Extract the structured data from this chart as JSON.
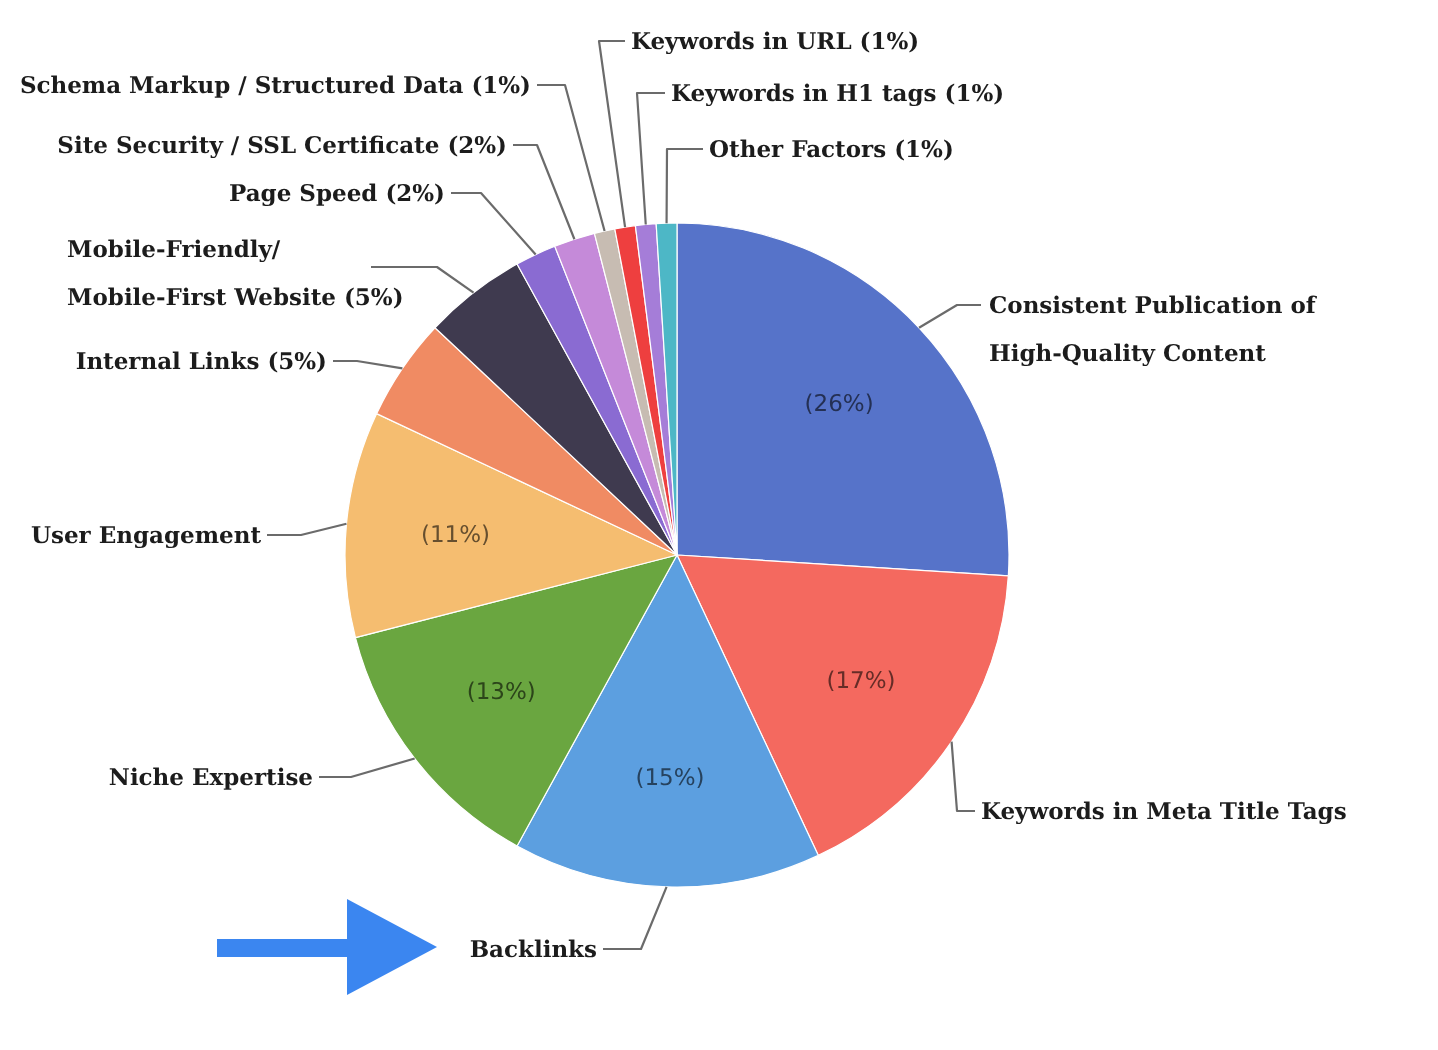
{
  "chart_data": {
    "type": "pie",
    "categories": [
      "Consistent Publication of\nHigh-Quality Content",
      "Keywords in Meta Title Tags",
      "Backlinks",
      "Niche Expertise",
      "User Engagement",
      "Internal Links (5%)",
      "Mobile-Friendly/\nMobile-First Website (5%)",
      "Page Speed (2%)",
      "Site Security / SSL Certificate (2%)",
      "Schema Markup / Structured Data (1%)",
      "Keywords in URL (1%)",
      "Keywords in H1 tags (1%)",
      "Other Factors (1%)"
    ],
    "values": [
      26,
      17,
      15,
      13,
      11,
      5,
      5,
      2,
      2,
      1,
      1,
      1,
      1
    ],
    "colors": [
      "#5673c9",
      "#f4695f",
      "#5c9fe0",
      "#6aa640",
      "#f5bd70",
      "#f08b63",
      "#3f3a4f",
      "#8a6bd2",
      "#c58ad9",
      "#c7bcb2",
      "#ee3f3f",
      "#a57dd8",
      "#4db7c6"
    ],
    "value_labels": [
      "(26%)",
      "(17%)",
      "(15%)",
      "(13%)",
      "(11%)",
      null,
      null,
      null,
      null,
      null,
      null,
      null,
      null
    ]
  }
}
